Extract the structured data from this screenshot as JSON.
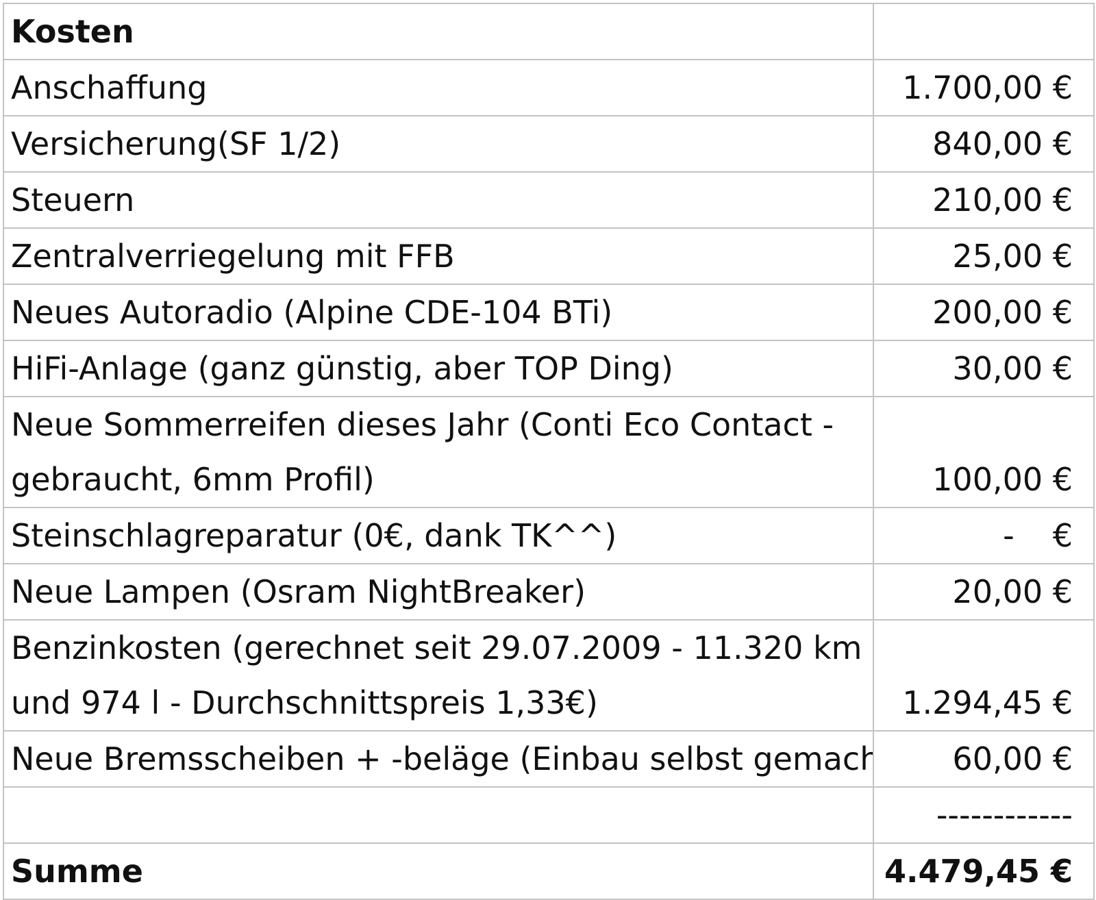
{
  "header": {
    "title": "Kosten",
    "amount": ""
  },
  "rows": [
    {
      "label": "Anschaffung",
      "amount": "1.700,00 €"
    },
    {
      "label": "Versicherung(SF 1/2)",
      "amount": "840,00 €"
    },
    {
      "label": "Steuern",
      "amount": "210,00 €"
    },
    {
      "label": "Zentralverriegelung mit FFB",
      "amount": "25,00 €"
    },
    {
      "label": "Neues Autoradio (Alpine CDE-104 BTi)",
      "amount": "200,00 €"
    },
    {
      "label": "HiFi-Anlage (ganz günstig, aber TOP Ding)",
      "amount": "30,00 €"
    },
    {
      "label": "Neue Sommerreifen dieses Jahr (Conti Eco Contact  - gebraucht, 6mm Profil)",
      "amount": "100,00 €"
    },
    {
      "label": "Steinschlagreparatur (0€, dank TK^^)",
      "amount_dash": "-",
      "amount_currency": "€"
    },
    {
      "label": "Neue Lampen (Osram NightBreaker)",
      "amount": "20,00 €"
    },
    {
      "label": "Benzinkosten (gerechnet seit 29.07.2009 - 11.320 km und 974 l - Durchschnittspreis 1,33€)",
      "amount": "1.294,45 €"
    },
    {
      "label": "Neue Bremsscheiben + -beläge (Einbau selbst gemacht)",
      "amount": "60,00 €"
    }
  ],
  "separator": "------------",
  "total": {
    "label": "Summe",
    "amount": "4.479,45 €"
  }
}
